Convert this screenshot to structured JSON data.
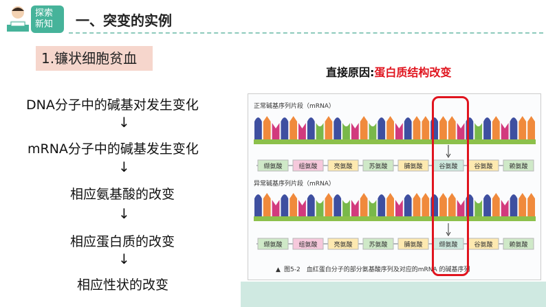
{
  "header": {
    "badge_line1": "探索",
    "badge_line2": "新知",
    "title": "一、突变的实例"
  },
  "section": {
    "subtitle": "1.镰状细胞贫血"
  },
  "steps": [
    "DNA分子中的碱基对发生变化",
    "mRNA分子中的碱基发生变化",
    "相应氨基酸的改变",
    "相应蛋白质的改变",
    "相应性状的改变"
  ],
  "arrow_glyph": "↓",
  "cause": {
    "prefix": "直接原因:",
    "highlight": "蛋白质结构改变"
  },
  "figure": {
    "normal_label": "正常碱基序列片段（mRNA）",
    "abnormal_label": "异常碱基序列片段（mRNA）",
    "normal_amino": [
      "缬氨酸",
      "组氨酸",
      "亮氨酸",
      "苏氨酸",
      "脯氨酸",
      "谷氨酸",
      "谷氨酸",
      "赖氨酸"
    ],
    "abnormal_amino": [
      "缬氨酸",
      "组氨酸",
      "亮氨酸",
      "苏氨酸",
      "脯氨酸",
      "缬氨酸",
      "谷氨酸",
      "赖氨酸"
    ],
    "caption_marker": "▲",
    "caption": "图5-2　血红蛋白分子的部分氨基酸序列及对应的mRNA 的碱基序列"
  },
  "colors": {
    "teal": "#46b39a",
    "red_highlight": "#e0141e",
    "base_purple": "#3e4fa0",
    "base_orange": "#f08a3c",
    "base_magenta": "#d23a7d",
    "base_green": "#79b84a",
    "strand": "#8cc04b"
  }
}
